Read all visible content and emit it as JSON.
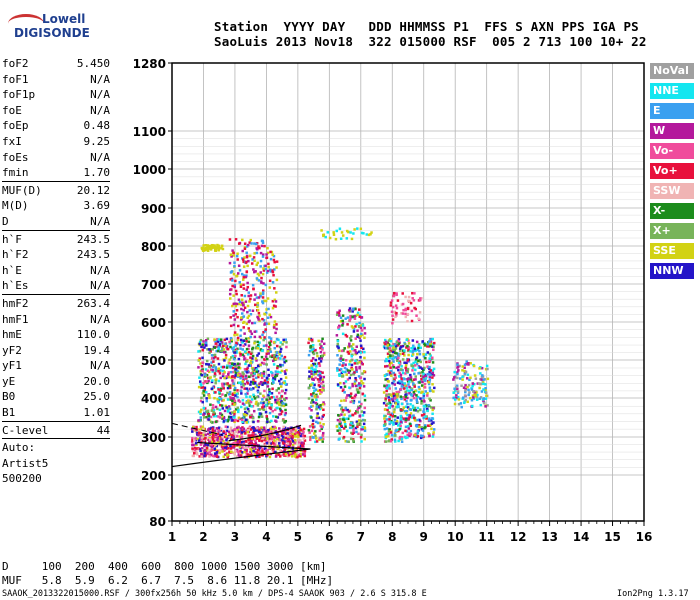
{
  "logo": {
    "line1": "Lowell",
    "line2": "DIGISONDE"
  },
  "header": {
    "labels": "Station  YYYY DAY   DDD HHMMSS P1  FFS S AXN PPS IGA PS",
    "values": "SaoLuis 2013 Nov18  322 015000 RSF  005 2 713 100 10+ 22"
  },
  "params_a": [
    {
      "k": "foF2",
      "v": "5.450"
    },
    {
      "k": "foF1",
      "v": "N/A"
    },
    {
      "k": "foF1p",
      "v": "N/A"
    },
    {
      "k": "foE",
      "v": "N/A"
    },
    {
      "k": "foEp",
      "v": "0.48"
    },
    {
      "k": "fxI",
      "v": "9.25"
    },
    {
      "k": "foEs",
      "v": "N/A"
    },
    {
      "k": "fmin",
      "v": "1.70"
    }
  ],
  "params_b": [
    {
      "k": "MUF(D)",
      "v": "20.12"
    },
    {
      "k": "M(D)",
      "v": "3.69"
    },
    {
      "k": "D",
      "v": "N/A"
    }
  ],
  "params_c": [
    {
      "k": "h`F",
      "v": "243.5"
    },
    {
      "k": "h`F2",
      "v": "243.5"
    },
    {
      "k": "h`E",
      "v": "N/A"
    },
    {
      "k": "h`Es",
      "v": "N/A"
    }
  ],
  "params_d": [
    {
      "k": "hmF2",
      "v": "263.4"
    },
    {
      "k": "hmF1",
      "v": "N/A"
    },
    {
      "k": "hmE",
      "v": "110.0"
    },
    {
      "k": "yF2",
      "v": "19.4"
    },
    {
      "k": "yF1",
      "v": "N/A"
    },
    {
      "k": "yE",
      "v": "20.0"
    },
    {
      "k": "B0",
      "v": "25.0"
    },
    {
      "k": "B1",
      "v": "1.01"
    }
  ],
  "clevel": {
    "k": "C-level",
    "v": "44"
  },
  "auto": [
    "Auto:",
    "Artist5",
    "500200"
  ],
  "legend": [
    {
      "label": "NoVal",
      "color": "#a0a0a0"
    },
    {
      "label": "NNE",
      "color": "#14e6f0"
    },
    {
      "label": "E",
      "color": "#3aa0f0"
    },
    {
      "label": "W",
      "color": "#b4189c"
    },
    {
      "label": "Vo-",
      "color": "#f04c9c"
    },
    {
      "label": "Vo+",
      "color": "#e8103c"
    },
    {
      "label": "SSW",
      "color": "#f0b4b4"
    },
    {
      "label": "X-",
      "color": "#1c8c1c"
    },
    {
      "label": "X+",
      "color": "#78b45a"
    },
    {
      "label": "SSE",
      "color": "#d2d214"
    },
    {
      "label": "NNW",
      "color": "#2414c8"
    }
  ],
  "chart_data": {
    "type": "scatter",
    "x_ticks": [
      "1",
      "2",
      "3",
      "4",
      "5",
      "6",
      "7",
      "8",
      "9",
      "10",
      "11",
      "12",
      "13",
      "14",
      "15",
      "16"
    ],
    "y_ticks": [
      "80",
      "200",
      "300",
      "400",
      "500",
      "600",
      "700",
      "800",
      "900",
      "1000",
      "1100",
      "1280"
    ],
    "xlim": [
      1,
      16
    ],
    "y_scale": "custom (80, 200–1100, 1280)",
    "grid": true
  },
  "footer": {
    "dist": "D     100  200  400  600  800 1000 1500 3000 [km]",
    "muf": "MUF   5.8  5.9  6.2  6.7  7.5  8.6 11.8 20.1 [MHz]",
    "fine_left": "SAAOK_2013322015000.RSF / 300fx256h 50 kHz 5.0 km / DPS-4 SAAOK 903 / 2.6 S 315.8 E",
    "fine_right": "Ion2Png 1.3.17"
  }
}
